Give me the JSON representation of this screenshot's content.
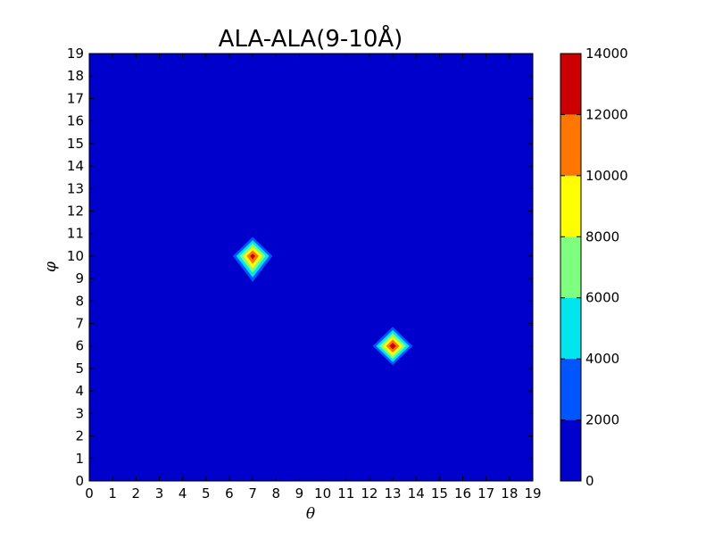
{
  "chart_data": {
    "type": "heatmap",
    "title": "ALA-ALA(9-10Å)",
    "xlabel": "θ",
    "ylabel": "φ",
    "xlim": [
      0,
      19
    ],
    "ylim": [
      0,
      19
    ],
    "x_ticks": [
      "0",
      "1",
      "2",
      "3",
      "4",
      "5",
      "6",
      "7",
      "8",
      "9",
      "10",
      "11",
      "12",
      "13",
      "14",
      "15",
      "16",
      "17",
      "18",
      "19"
    ],
    "y_ticks": [
      "0",
      "1",
      "2",
      "3",
      "4",
      "5",
      "6",
      "7",
      "8",
      "9",
      "10",
      "11",
      "12",
      "13",
      "14",
      "15",
      "16",
      "17",
      "18",
      "19"
    ],
    "background_value": 0,
    "peaks": [
      {
        "x": 7,
        "y": 10,
        "value": 13500
      },
      {
        "x": 13,
        "y": 6,
        "value": 14000
      }
    ],
    "contour_levels": [
      0,
      2000,
      4000,
      6000,
      8000,
      10000,
      12000,
      14000
    ],
    "colorbar": {
      "ticks": [
        "0",
        "2000",
        "4000",
        "6000",
        "8000",
        "10000",
        "12000",
        "14000"
      ],
      "range": [
        0,
        14000
      ],
      "colors": [
        "#0000cc",
        "#0055ff",
        "#00e5ee",
        "#7fff7f",
        "#ffff00",
        "#ff7700",
        "#cc0000"
      ]
    },
    "grid": false
  }
}
